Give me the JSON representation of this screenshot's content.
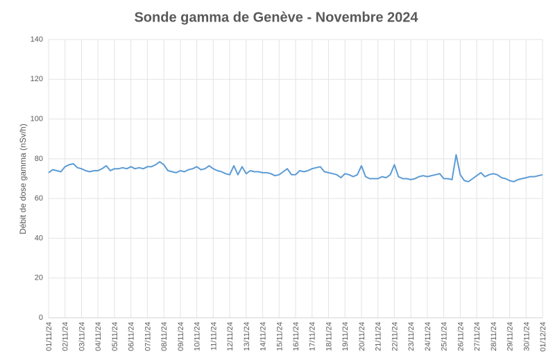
{
  "chart_data": {
    "type": "line",
    "title": "Sonde gamma de Genève - Novembre 2024",
    "ylabel": "Débit de dose gamma (nSv/h)",
    "categories": [
      "01/11/24",
      null,
      null,
      null,
      "02/11/24",
      null,
      null,
      null,
      "03/11/24",
      null,
      null,
      null,
      "04/11/24",
      null,
      null,
      null,
      "05/11/24",
      null,
      null,
      null,
      "06/11/24",
      null,
      null,
      null,
      "07/11/24",
      null,
      null,
      null,
      "08/11/24",
      null,
      null,
      null,
      "09/11/24",
      null,
      null,
      null,
      "10/11/24",
      null,
      null,
      null,
      "11/11/24",
      null,
      null,
      null,
      "12/11/24",
      null,
      null,
      null,
      "13/11/24",
      null,
      null,
      null,
      "14/11/24",
      null,
      null,
      null,
      "15/11/24",
      null,
      null,
      null,
      "16/11/24",
      null,
      null,
      null,
      "17/11/24",
      null,
      null,
      null,
      "18/11/24",
      null,
      null,
      null,
      "19/11/24",
      null,
      null,
      null,
      "20/11/24",
      null,
      null,
      null,
      "21/11/24",
      null,
      null,
      null,
      "22/11/24",
      null,
      null,
      null,
      "23/11/24",
      null,
      null,
      null,
      "24/11/24",
      null,
      null,
      null,
      "25/11/24",
      null,
      null,
      null,
      "26/11/24",
      null,
      null,
      null,
      "27/11/24",
      null,
      null,
      null,
      "28/11/24",
      null,
      null,
      null,
      "29/11/24",
      null,
      null,
      null,
      "30/11/24",
      null,
      null,
      null,
      "01/12/24"
    ],
    "series": [
      {
        "color": "#5b9bd5",
        "values": [
          73,
          74.5,
          74,
          73.5,
          76,
          77,
          77.5,
          75.5,
          75,
          74,
          73.5,
          74,
          74,
          75,
          76.5,
          74,
          75,
          75,
          75.5,
          75,
          76,
          75,
          75.5,
          75,
          76,
          76,
          77,
          78.5,
          77,
          74,
          73.5,
          73,
          74,
          73.5,
          74.5,
          75,
          76,
          74.5,
          75,
          76.5,
          75,
          74,
          73.5,
          72.5,
          72,
          76.5,
          72,
          76,
          72.5,
          74,
          73.5,
          73.5,
          73,
          73,
          72.5,
          71.5,
          72,
          73.5,
          75,
          72,
          72,
          74,
          73.5,
          74,
          75,
          75.5,
          76,
          73.5,
          73,
          72.5,
          72,
          70.5,
          72.5,
          72,
          71,
          72,
          76.5,
          71,
          70,
          70,
          70,
          71,
          70.5,
          72,
          77,
          71,
          70,
          70,
          69.5,
          70,
          71,
          71.5,
          71,
          71.5,
          72,
          72.5,
          70,
          70,
          69.5,
          82,
          72,
          69,
          68.5,
          70,
          71.5,
          73,
          71,
          72,
          72.5,
          72,
          70.5,
          70,
          69,
          68.5,
          69.5,
          70,
          70.5,
          71,
          71,
          71.5,
          72
        ]
      }
    ],
    "ylim": [
      0,
      140
    ],
    "yticks": [
      0,
      20,
      40,
      60,
      80,
      100,
      120,
      140
    ],
    "grid": true
  }
}
